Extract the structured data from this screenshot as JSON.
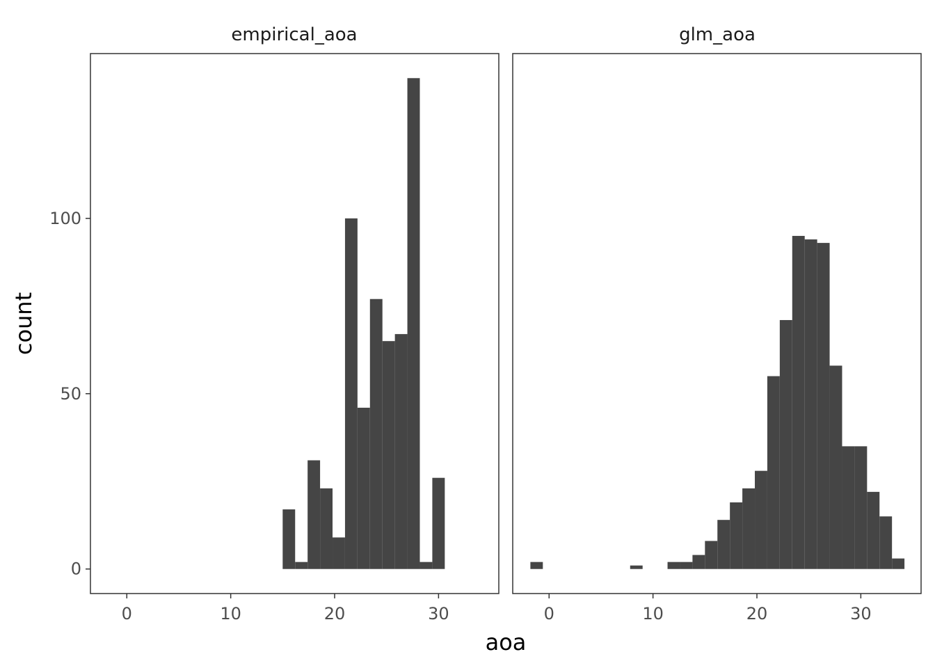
{
  "chart_data": {
    "type": "bar",
    "xlabel": "aoa",
    "ylabel": "count",
    "shared_y": true,
    "ylim": [
      -7,
      147
    ],
    "y_ticks": [
      0,
      50,
      100
    ],
    "x_ticks": [
      0,
      10,
      20,
      30
    ],
    "bar_color": "#454545",
    "panels": [
      {
        "title": "empirical_aoa",
        "xlim": [
          -3.5,
          35.8
        ],
        "bins": [
          {
            "x0": 15.0,
            "x1": 16.2,
            "count": 17
          },
          {
            "x0": 16.2,
            "x1": 17.4,
            "count": 2
          },
          {
            "x0": 17.4,
            "x1": 18.6,
            "count": 31
          },
          {
            "x0": 18.6,
            "x1": 19.8,
            "count": 23
          },
          {
            "x0": 19.8,
            "x1": 21.0,
            "count": 9
          },
          {
            "x0": 21.0,
            "x1": 22.2,
            "count": 100
          },
          {
            "x0": 22.2,
            "x1": 23.4,
            "count": 46
          },
          {
            "x0": 23.4,
            "x1": 24.6,
            "count": 77
          },
          {
            "x0": 24.6,
            "x1": 25.8,
            "count": 65
          },
          {
            "x0": 25.8,
            "x1": 27.0,
            "count": 67
          },
          {
            "x0": 27.0,
            "x1": 28.2,
            "count": 140
          },
          {
            "x0": 28.2,
            "x1": 29.4,
            "count": 2
          },
          {
            "x0": 29.4,
            "x1": 30.6,
            "count": 26
          }
        ]
      },
      {
        "title": "glm_aoa",
        "xlim": [
          -3.5,
          35.8
        ],
        "bins": [
          {
            "x0": -1.8,
            "x1": -0.6,
            "count": 2
          },
          {
            "x0": 7.8,
            "x1": 9.0,
            "count": 1
          },
          {
            "x0": 11.4,
            "x1": 12.6,
            "count": 2
          },
          {
            "x0": 12.6,
            "x1": 13.8,
            "count": 2
          },
          {
            "x0": 13.8,
            "x1": 15.0,
            "count": 4
          },
          {
            "x0": 15.0,
            "x1": 16.2,
            "count": 8
          },
          {
            "x0": 16.2,
            "x1": 17.4,
            "count": 14
          },
          {
            "x0": 17.4,
            "x1": 18.6,
            "count": 19
          },
          {
            "x0": 18.6,
            "x1": 19.8,
            "count": 23
          },
          {
            "x0": 19.8,
            "x1": 21.0,
            "count": 28
          },
          {
            "x0": 21.0,
            "x1": 22.2,
            "count": 55
          },
          {
            "x0": 22.2,
            "x1": 23.4,
            "count": 71
          },
          {
            "x0": 23.4,
            "x1": 24.6,
            "count": 95
          },
          {
            "x0": 24.6,
            "x1": 25.8,
            "count": 94
          },
          {
            "x0": 25.8,
            "x1": 27.0,
            "count": 93
          },
          {
            "x0": 27.0,
            "x1": 28.2,
            "count": 58
          },
          {
            "x0": 28.2,
            "x1": 29.4,
            "count": 35
          },
          {
            "x0": 29.4,
            "x1": 30.6,
            "count": 35
          },
          {
            "x0": 30.6,
            "x1": 31.8,
            "count": 22
          },
          {
            "x0": 31.8,
            "x1": 33.0,
            "count": 15
          },
          {
            "x0": 33.0,
            "x1": 34.2,
            "count": 3
          }
        ]
      }
    ]
  }
}
